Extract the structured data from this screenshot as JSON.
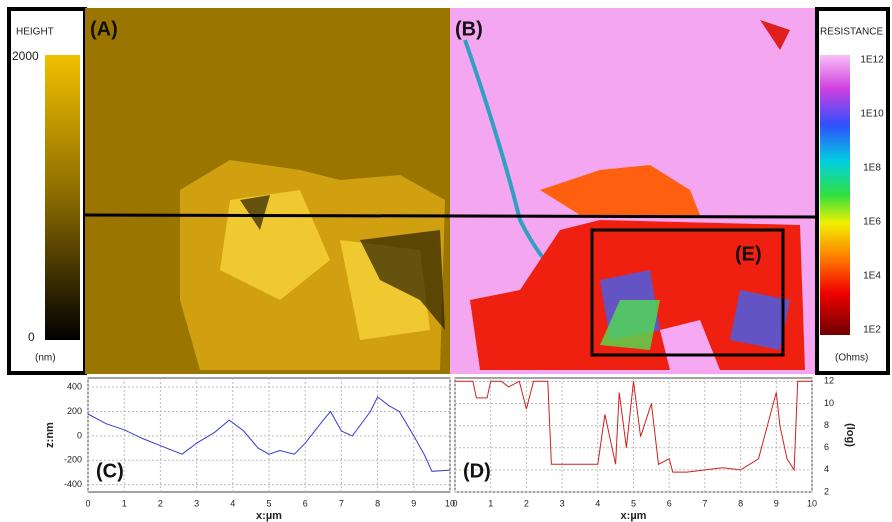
{
  "panels": {
    "a_label": "(A)",
    "b_label": "(B)",
    "e_label": "(E)"
  },
  "height_bar": {
    "title": "HEIGHT",
    "max_label": "2000",
    "min_label": "0",
    "unit": "(nm)"
  },
  "resistance_bar": {
    "title": "RESISTANCE",
    "ticks": [
      "1E12",
      "1E10",
      "1E8",
      "1E6",
      "1E4",
      "1E2"
    ],
    "unit": "(Ohms)"
  },
  "chart_data": [
    {
      "type": "line",
      "panel_label": "(C)",
      "x_label": "x:µm",
      "y_label": "z:nm",
      "axis_side": "left",
      "x": [
        0,
        0.5,
        1,
        1.5,
        2,
        2.6,
        3,
        3.5,
        3.9,
        4.3,
        4.7,
        5,
        5.3,
        5.7,
        6,
        6.5,
        6.7,
        7,
        7.3,
        7.8,
        8,
        8.3,
        8.6,
        9,
        9.3,
        9.5,
        10
      ],
      "series": [
        {
          "name": "z",
          "color": "#3a3ad0",
          "values": [
            180,
            100,
            50,
            -20,
            -80,
            -150,
            -60,
            30,
            130,
            40,
            -100,
            -150,
            -120,
            -150,
            -60,
            130,
            200,
            40,
            0,
            200,
            320,
            250,
            200,
            0,
            -160,
            -290,
            -280
          ]
        }
      ],
      "xlim": [
        0,
        10
      ],
      "ylim": [
        -460,
        475
      ],
      "xticks": [
        0,
        1,
        2,
        3,
        4,
        5,
        6,
        7,
        8,
        9,
        10
      ],
      "yticks": [
        -400,
        -200,
        0,
        200,
        400
      ],
      "grid": true
    },
    {
      "type": "line",
      "panel_label": "(D)",
      "x_label": "x:µm",
      "y_label": "(log)",
      "axis_side": "right",
      "x": [
        0,
        0.5,
        0.6,
        0.9,
        1,
        1.3,
        1.5,
        1.8,
        2,
        2.2,
        2.6,
        2.7,
        3,
        4,
        4.2,
        4.5,
        4.6,
        4.8,
        5,
        5.2,
        5.5,
        5.7,
        6,
        6.1,
        6.5,
        7,
        7.5,
        8,
        8.5,
        9,
        9.1,
        9.3,
        9.5,
        9.6,
        10
      ],
      "series": [
        {
          "name": "log R",
          "color": "#d02020",
          "values": [
            12,
            12,
            10.5,
            10.5,
            12,
            12,
            11.5,
            12,
            9.5,
            12,
            12,
            4.5,
            4.5,
            4.5,
            9,
            4.5,
            11,
            6,
            12,
            7,
            10,
            4.5,
            5,
            3.8,
            3.8,
            4,
            4.2,
            4,
            5,
            11,
            8,
            5,
            4,
            12,
            12
          ]
        }
      ],
      "xlim": [
        0,
        10
      ],
      "ylim": [
        2,
        12.3
      ],
      "xticks": [
        0,
        1,
        2,
        3,
        4,
        5,
        6,
        7,
        8,
        9,
        10
      ],
      "yticks": [
        2,
        4,
        6,
        8,
        10,
        12
      ],
      "grid": true
    }
  ]
}
